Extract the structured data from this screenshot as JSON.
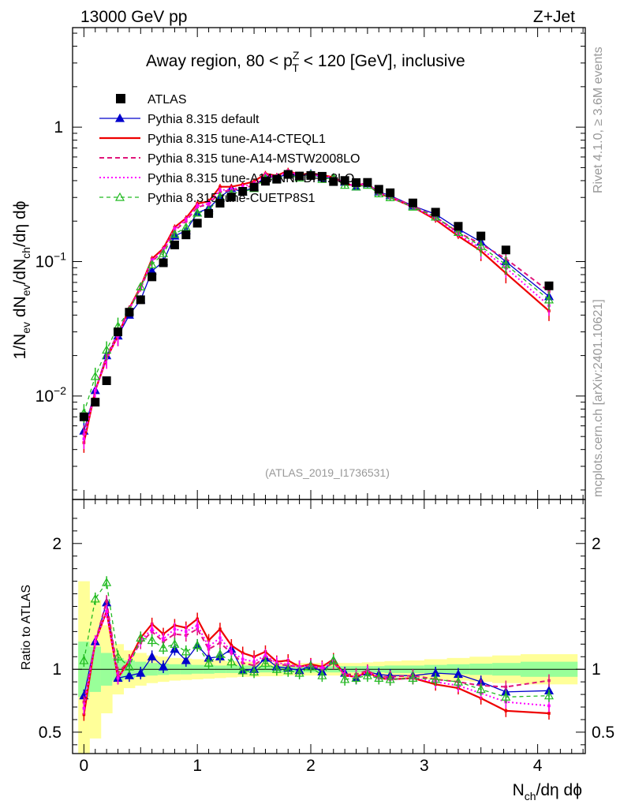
{
  "header": {
    "left": "13000 GeV pp",
    "right": "Z+Jet"
  },
  "side": {
    "rivet": "Rivet 4.1.0, ≥ 3.6M events",
    "mcplots": "mcplots.cern.ch [arXiv:2401.10621]"
  },
  "main_title": {
    "prefix": "Away region, 80 < p",
    "sup": "Z",
    "sub": "T",
    "suffix": " < 120 [GeV], inclusive"
  },
  "analysis_tag": "(ATLAS_2019_I1736531)",
  "colors": {
    "data": "#000000",
    "default": "#0000cc",
    "cteql1": "#ee0000",
    "mstw": "#e0157a",
    "nnpdf": "#ff00ff",
    "cuetp": "#22bb22",
    "band_inner": "#99ff99",
    "band_outer": "#ffff99"
  },
  "chart_data": [
    {
      "type": "line",
      "panel": "main",
      "ylabel": "1/N_ev dN_ev/dN_ch/dη dφ",
      "yscale": "log",
      "ylim": [
        0.0017,
        5.5
      ],
      "xlim": [
        -0.1,
        4.42
      ],
      "yticks": [
        {
          "v": 0.01,
          "base": "10",
          "exp": "−2"
        },
        {
          "v": 0.1,
          "base": "10",
          "exp": "−1"
        },
        {
          "v": 1,
          "base": "1",
          "exp": ""
        }
      ],
      "x": [
        0.0,
        0.1,
        0.2,
        0.3,
        0.4,
        0.5,
        0.6,
        0.7,
        0.8,
        0.9,
        1.0,
        1.1,
        1.2,
        1.3,
        1.4,
        1.5,
        1.6,
        1.7,
        1.8,
        1.9,
        2.0,
        2.1,
        2.2,
        2.3,
        2.4,
        2.5,
        2.6,
        2.7,
        2.9,
        3.1,
        3.3,
        3.5,
        3.72,
        4.1
      ],
      "series": [
        {
          "name": "ATLAS",
          "key": "data",
          "style": "markers",
          "values": [
            0.007,
            0.009,
            0.013,
            0.03,
            0.042,
            0.052,
            0.077,
            0.098,
            0.133,
            0.158,
            0.193,
            0.228,
            0.272,
            0.302,
            0.333,
            0.358,
            0.396,
            0.41,
            0.445,
            0.433,
            0.437,
            0.431,
            0.394,
            0.401,
            0.387,
            0.388,
            0.345,
            0.325,
            0.273,
            0.233,
            0.183,
            0.155,
            0.122,
            0.066
          ]
        },
        {
          "name": "Pythia 8.315 default",
          "key": "default",
          "style": "line-tri",
          "values": [
            0.0055,
            0.011,
            0.02,
            0.028,
            0.04,
            0.052,
            0.085,
            0.1,
            0.155,
            0.17,
            0.23,
            0.25,
            0.3,
            0.35,
            0.33,
            0.36,
            0.43,
            0.42,
            0.45,
            0.43,
            0.45,
            0.42,
            0.42,
            0.39,
            0.36,
            0.38,
            0.33,
            0.31,
            0.26,
            0.225,
            0.175,
            0.14,
            0.1,
            0.055
          ]
        },
        {
          "name": "Pythia 8.315 tune-A14-CTEQL1",
          "key": "cteql1",
          "style": "solid",
          "values": [
            0.0045,
            0.011,
            0.019,
            0.028,
            0.045,
            0.065,
            0.105,
            0.125,
            0.18,
            0.21,
            0.27,
            0.28,
            0.36,
            0.36,
            0.375,
            0.395,
            0.45,
            0.435,
            0.475,
            0.44,
            0.455,
            0.44,
            0.425,
            0.38,
            0.365,
            0.38,
            0.32,
            0.3,
            0.255,
            0.205,
            0.155,
            0.12,
            0.082,
            0.043
          ]
        },
        {
          "name": "Pythia 8.315 tune-A14-MSTW2008LO",
          "key": "mstw",
          "style": "dashed",
          "values": [
            0.0052,
            0.011,
            0.02,
            0.029,
            0.045,
            0.063,
            0.1,
            0.12,
            0.17,
            0.2,
            0.255,
            0.265,
            0.33,
            0.34,
            0.35,
            0.37,
            0.435,
            0.425,
            0.46,
            0.44,
            0.45,
            0.43,
            0.415,
            0.385,
            0.37,
            0.385,
            0.325,
            0.305,
            0.26,
            0.215,
            0.165,
            0.135,
            0.105,
            0.06
          ]
        },
        {
          "name": "Pythia 8.315 tune-A14-NNPDF2.3LO",
          "key": "nnpdf",
          "style": "dotted",
          "values": [
            0.0048,
            0.011,
            0.019,
            0.028,
            0.044,
            0.064,
            0.102,
            0.122,
            0.175,
            0.205,
            0.26,
            0.27,
            0.34,
            0.345,
            0.36,
            0.38,
            0.44,
            0.43,
            0.465,
            0.44,
            0.45,
            0.435,
            0.42,
            0.38,
            0.365,
            0.38,
            0.32,
            0.3,
            0.255,
            0.21,
            0.16,
            0.125,
            0.09,
            0.047
          ]
        },
        {
          "name": "Pythia 8.315 tune-CUETP8S1",
          "key": "cuetp",
          "style": "dashed-tri",
          "values": [
            0.0075,
            0.014,
            0.022,
            0.033,
            0.043,
            0.065,
            0.095,
            0.115,
            0.16,
            0.18,
            0.23,
            0.24,
            0.305,
            0.32,
            0.33,
            0.35,
            0.415,
            0.41,
            0.44,
            0.42,
            0.445,
            0.41,
            0.42,
            0.37,
            0.36,
            0.37,
            0.32,
            0.3,
            0.255,
            0.215,
            0.165,
            0.13,
            0.095,
            0.052
          ]
        }
      ]
    },
    {
      "type": "line",
      "panel": "ratio",
      "ylabel": "Ratio to ATLAS",
      "xlabel": "N_ch/dη dφ",
      "ylim": [
        0.33,
        2.35
      ],
      "xlim": [
        -0.1,
        4.42
      ],
      "yticks": [
        {
          "v": 0.5,
          "label": "0.5"
        },
        {
          "v": 1,
          "label": "1"
        },
        {
          "v": 2,
          "label": "2"
        }
      ],
      "xticks": [
        {
          "v": 0,
          "label": "0"
        },
        {
          "v": 1,
          "label": "1"
        },
        {
          "v": 2,
          "label": "2"
        },
        {
          "v": 3,
          "label": "3"
        },
        {
          "v": 4,
          "label": "4"
        }
      ],
      "x": [
        0.0,
        0.1,
        0.2,
        0.3,
        0.4,
        0.5,
        0.6,
        0.7,
        0.8,
        0.9,
        1.0,
        1.1,
        1.2,
        1.3,
        1.4,
        1.5,
        1.6,
        1.7,
        1.8,
        1.9,
        2.0,
        2.1,
        2.2,
        2.3,
        2.4,
        2.5,
        2.6,
        2.7,
        2.9,
        3.1,
        3.3,
        3.5,
        3.72,
        4.1
      ],
      "band_edges": [
        -0.05,
        0.05,
        0.15,
        0.25,
        0.35,
        0.45,
        0.55,
        0.65,
        0.75,
        0.85,
        0.95,
        1.05,
        1.15,
        1.25,
        1.35,
        1.45,
        1.55,
        1.65,
        1.75,
        1.85,
        1.95,
        2.05,
        2.15,
        2.25,
        2.35,
        2.45,
        2.55,
        2.65,
        2.8,
        3.0,
        3.2,
        3.4,
        3.6,
        3.85,
        4.35
      ],
      "band_inner": [
        0.22,
        0.18,
        0.13,
        0.09,
        0.07,
        0.06,
        0.05,
        0.045,
        0.04,
        0.04,
        0.035,
        0.035,
        0.03,
        0.03,
        0.03,
        0.03,
        0.025,
        0.025,
        0.025,
        0.025,
        0.025,
        0.025,
        0.025,
        0.025,
        0.025,
        0.025,
        0.025,
        0.03,
        0.03,
        0.035,
        0.04,
        0.045,
        0.05,
        0.06
      ],
      "band_outer": [
        0.7,
        0.55,
        0.35,
        0.2,
        0.15,
        0.13,
        0.11,
        0.1,
        0.09,
        0.085,
        0.08,
        0.075,
        0.07,
        0.065,
        0.06,
        0.06,
        0.055,
        0.055,
        0.05,
        0.05,
        0.05,
        0.05,
        0.05,
        0.05,
        0.05,
        0.055,
        0.06,
        0.065,
        0.07,
        0.08,
        0.09,
        0.1,
        0.11,
        0.12
      ],
      "series": [
        {
          "key": "default",
          "style": "line-tri",
          "values": [
            0.79,
            1.22,
            1.53,
            0.93,
            0.95,
            0.97,
            1.1,
            1.02,
            1.16,
            1.07,
            1.19,
            1.09,
            1.1,
            1.16,
            0.99,
            1.0,
            1.09,
            1.02,
            1.01,
            0.99,
            1.03,
            0.98,
            1.07,
            0.97,
            0.93,
            0.98,
            0.96,
            0.95,
            0.95,
            0.97,
            0.96,
            0.9,
            0.82,
            0.83
          ]
        },
        {
          "key": "cteql1",
          "style": "solid",
          "values": [
            0.64,
            1.22,
            1.46,
            0.93,
            1.07,
            1.25,
            1.36,
            1.28,
            1.35,
            1.33,
            1.4,
            1.23,
            1.32,
            1.19,
            1.13,
            1.1,
            1.14,
            1.06,
            1.07,
            1.02,
            1.04,
            1.02,
            1.08,
            0.95,
            0.94,
            0.98,
            0.93,
            0.92,
            0.93,
            0.88,
            0.85,
            0.77,
            0.67,
            0.65
          ]
        },
        {
          "key": "mstw",
          "style": "dashed",
          "values": [
            0.74,
            1.22,
            1.54,
            0.97,
            1.07,
            1.21,
            1.3,
            1.22,
            1.28,
            1.27,
            1.32,
            1.16,
            1.21,
            1.13,
            1.05,
            1.03,
            1.1,
            1.04,
            1.03,
            1.02,
            1.03,
            1.0,
            1.05,
            0.96,
            0.96,
            0.99,
            0.94,
            0.94,
            0.95,
            0.92,
            0.9,
            0.87,
            0.86,
            0.91
          ]
        },
        {
          "key": "nnpdf",
          "style": "dotted",
          "values": [
            0.69,
            1.22,
            1.46,
            0.93,
            1.05,
            1.23,
            1.32,
            1.24,
            1.32,
            1.3,
            1.35,
            1.18,
            1.25,
            1.14,
            1.08,
            1.06,
            1.11,
            1.05,
            1.04,
            1.02,
            1.03,
            1.01,
            1.07,
            0.95,
            0.94,
            0.98,
            0.93,
            0.92,
            0.93,
            0.9,
            0.87,
            0.81,
            0.74,
            0.71
          ]
        },
        {
          "key": "cuetp",
          "style": "dashed-tri",
          "values": [
            1.07,
            1.56,
            1.69,
            1.1,
            1.02,
            1.25,
            1.23,
            1.17,
            1.2,
            1.14,
            1.19,
            1.05,
            1.12,
            1.06,
            0.99,
            0.98,
            1.05,
            1.0,
            0.99,
            0.97,
            1.02,
            0.95,
            1.07,
            0.92,
            0.93,
            0.95,
            0.93,
            0.92,
            0.93,
            0.92,
            0.9,
            0.84,
            0.78,
            0.79
          ]
        }
      ]
    }
  ]
}
